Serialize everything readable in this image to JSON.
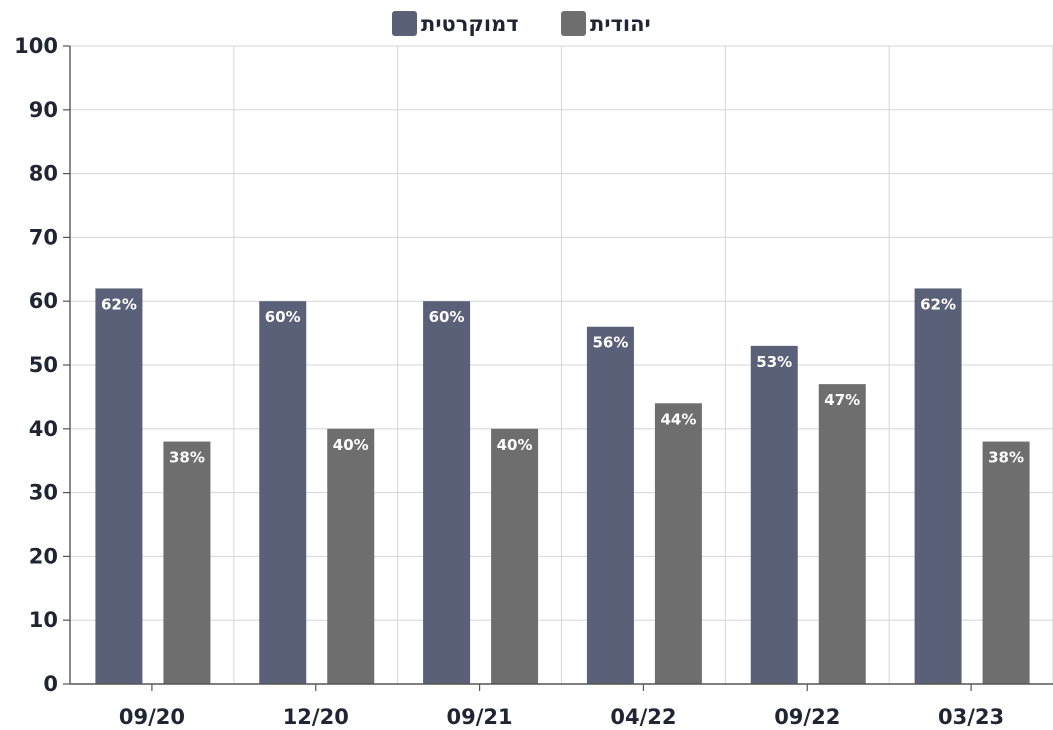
{
  "chart_data": {
    "type": "bar",
    "categories": [
      "09/20",
      "12/20",
      "09/21",
      "04/22",
      "09/22",
      "03/23"
    ],
    "series": [
      {
        "name": "דמוקרטית",
        "color": "#5b6079",
        "values": [
          62,
          60,
          60,
          56,
          53,
          62
        ],
        "labels": [
          "62%",
          "60%",
          "60%",
          "56%",
          "53%",
          "62%"
        ]
      },
      {
        "name": "יהודית",
        "color": "#6e6e6e",
        "values": [
          38,
          40,
          40,
          44,
          47,
          38
        ],
        "labels": [
          "38%",
          "40%",
          "40%",
          "44%",
          "47%",
          "38%"
        ]
      }
    ],
    "ylim": [
      0,
      100
    ],
    "yticks": [
      0,
      10,
      20,
      30,
      40,
      50,
      60,
      70,
      80,
      90,
      100
    ],
    "grid": true,
    "legend_position": "top-center",
    "title": "",
    "xlabel": "",
    "ylabel": ""
  }
}
